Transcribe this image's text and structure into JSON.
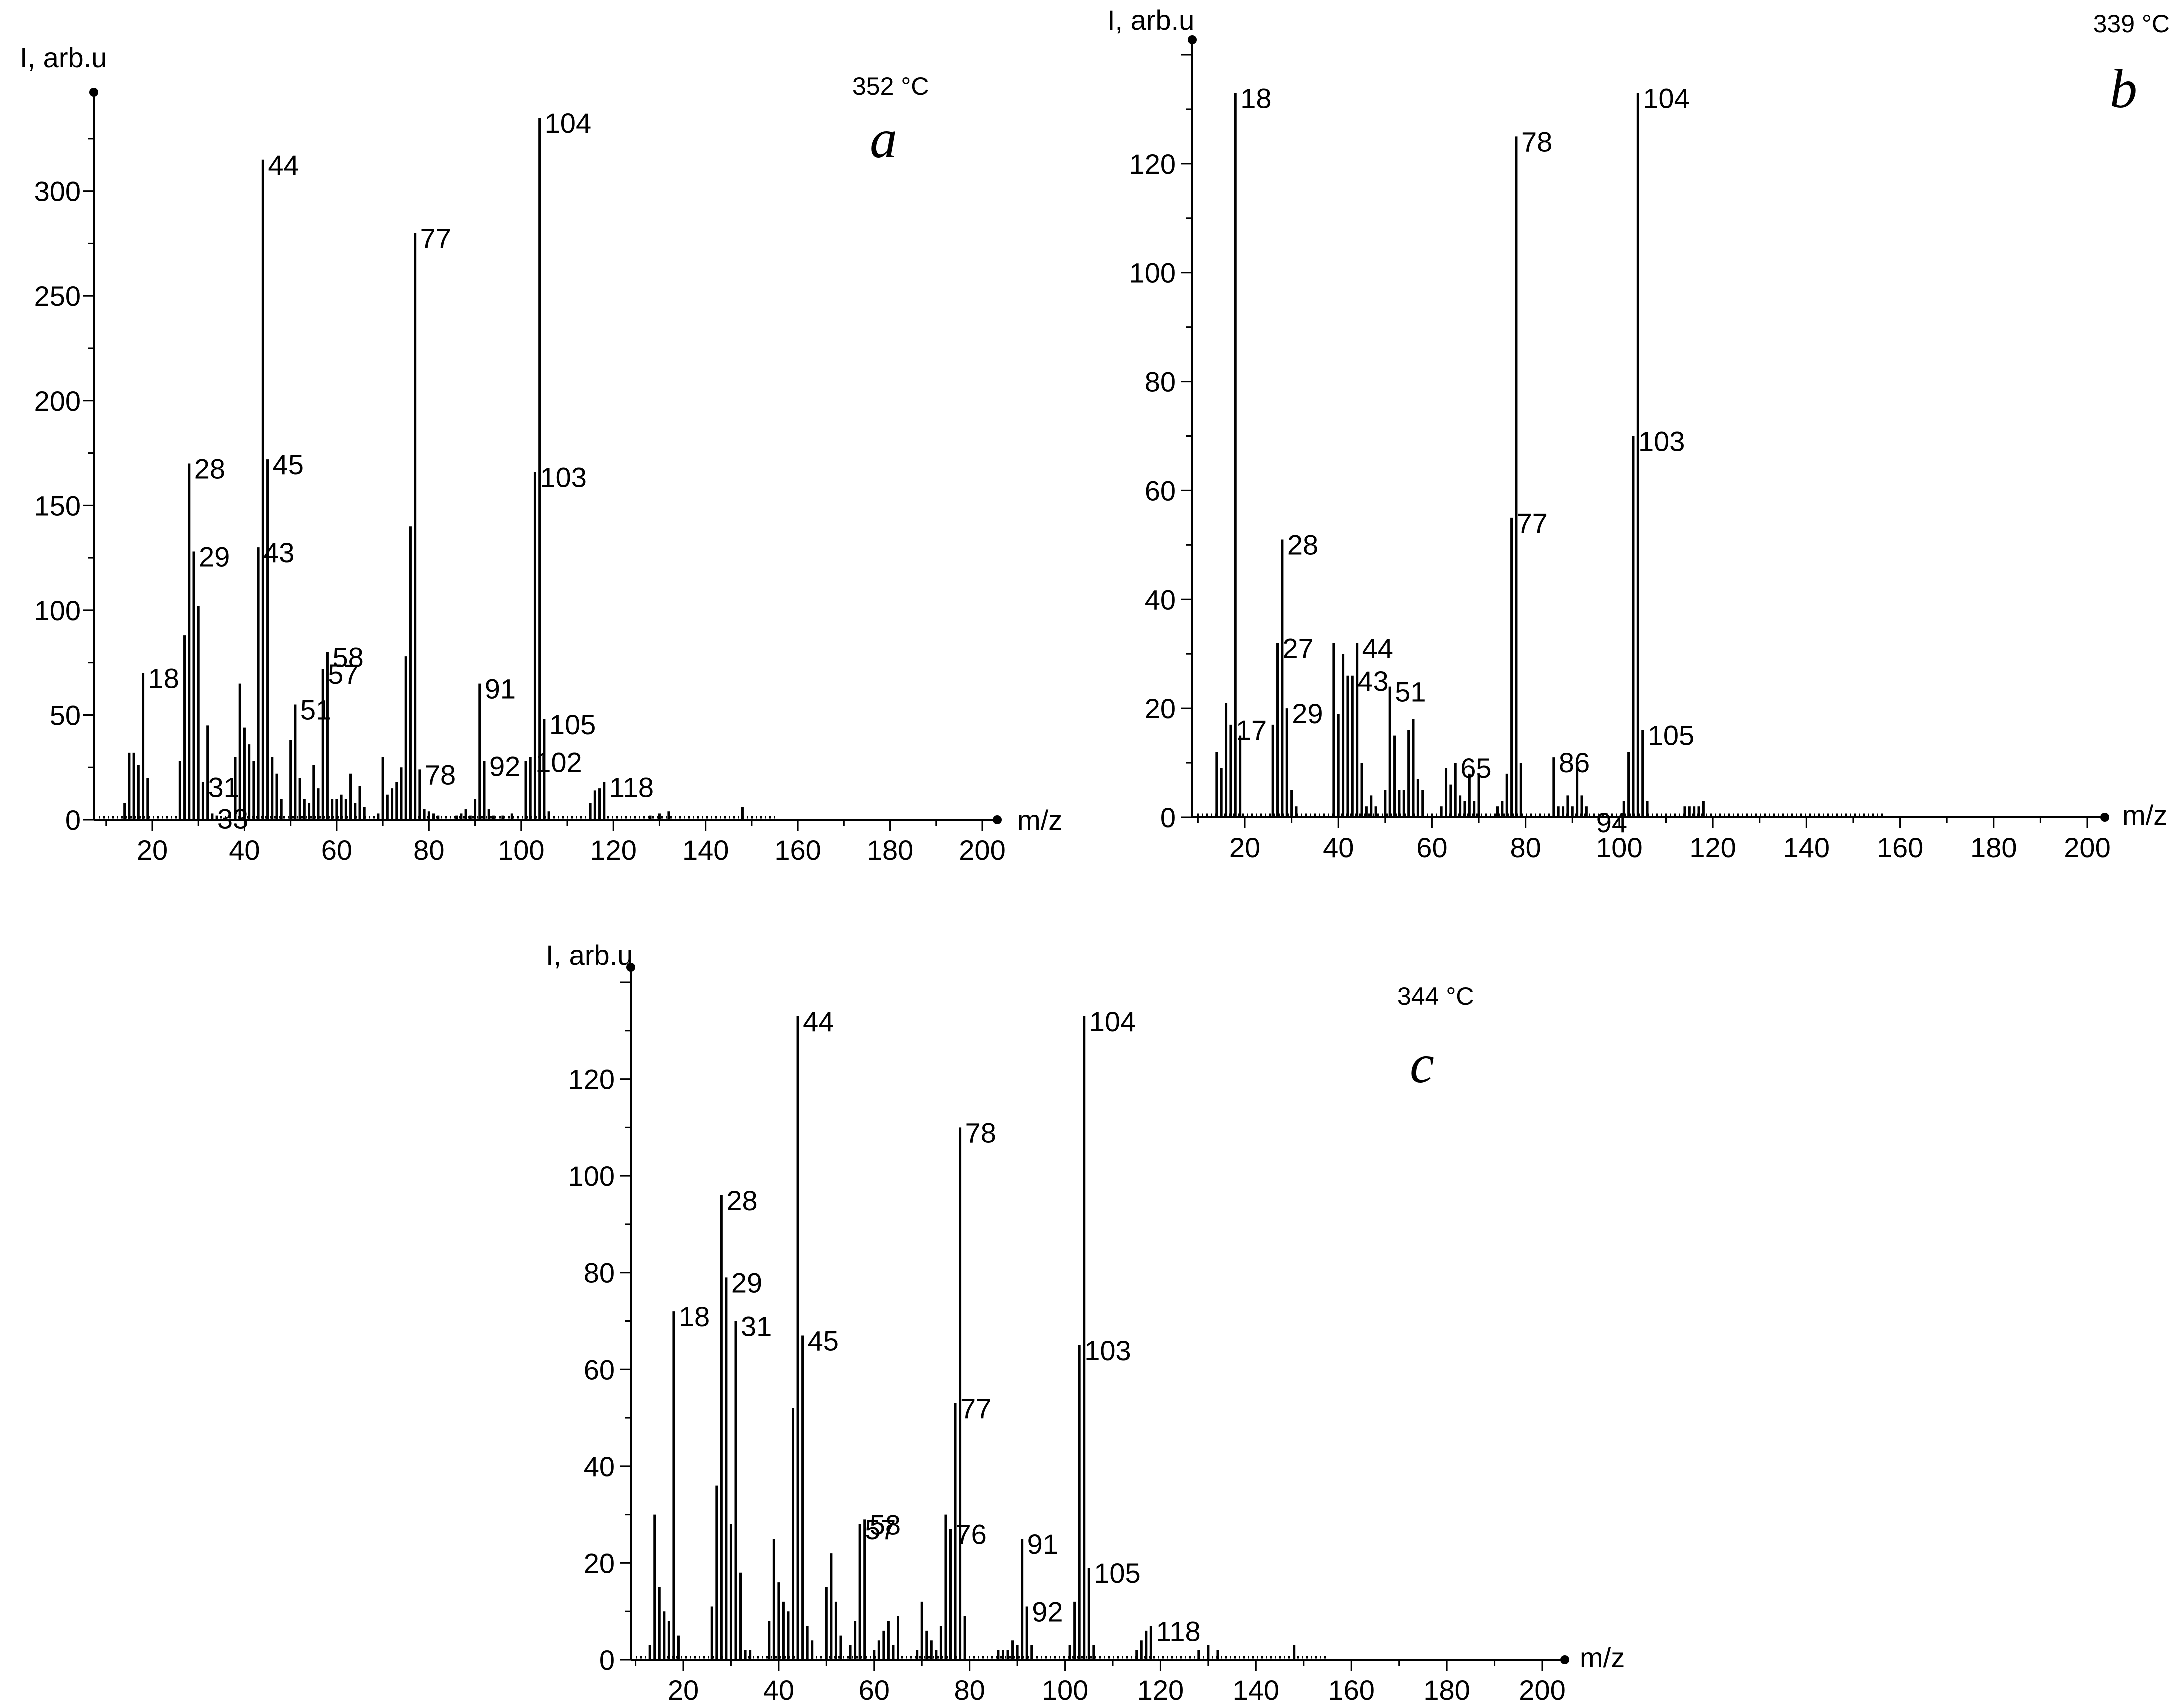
{
  "chart_data": [
    {
      "type": "bar",
      "panel_letter": "a",
      "temperature": "352 °C",
      "ylabel": "I, arb.u",
      "xlabel": "m/z",
      "xlim": [
        9,
        203
      ],
      "ylim": [
        0,
        340
      ],
      "xticks": [
        20,
        40,
        60,
        80,
        100,
        120,
        140,
        160,
        180,
        200
      ],
      "yticks": [
        0,
        50,
        100,
        150,
        200,
        250,
        300
      ],
      "x": [
        14,
        15,
        16,
        17,
        18,
        19,
        26,
        27,
        28,
        29,
        30,
        31,
        32,
        33,
        34,
        38,
        39,
        40,
        41,
        42,
        43,
        44,
        45,
        46,
        47,
        48,
        50,
        51,
        52,
        53,
        54,
        55,
        56,
        57,
        58,
        59,
        60,
        61,
        62,
        63,
        64,
        65,
        66,
        69,
        70,
        71,
        72,
        73,
        74,
        75,
        76,
        77,
        78,
        79,
        80,
        81,
        82,
        86,
        87,
        88,
        89,
        90,
        91,
        92,
        93,
        94,
        96,
        98,
        101,
        102,
        103,
        104,
        105,
        106,
        115,
        116,
        117,
        118,
        128,
        130,
        132,
        148
      ],
      "values": [
        8,
        32,
        32,
        26,
        70,
        20,
        28,
        88,
        170,
        128,
        102,
        18,
        45,
        3,
        2,
        30,
        65,
        44,
        36,
        28,
        130,
        315,
        172,
        30,
        22,
        10,
        38,
        55,
        20,
        10,
        8,
        26,
        15,
        72,
        80,
        10,
        10,
        12,
        10,
        22,
        8,
        16,
        6,
        3,
        30,
        12,
        15,
        18,
        25,
        78,
        140,
        280,
        24,
        5,
        4,
        3,
        2,
        2,
        3,
        5,
        2,
        10,
        65,
        28,
        5,
        2,
        2,
        3,
        28,
        30,
        166,
        335,
        48,
        4,
        8,
        14,
        15,
        18,
        2,
        3,
        4,
        6
      ],
      "labeled_peaks": [
        {
          "x": 18,
          "label": "18"
        },
        {
          "x": 28,
          "label": "28"
        },
        {
          "x": 29,
          "label": "29"
        },
        {
          "x": 31,
          "label": "31"
        },
        {
          "x": 33,
          "label": "33"
        },
        {
          "x": 43,
          "label": "43"
        },
        {
          "x": 44,
          "label": "44"
        },
        {
          "x": 45,
          "label": "45"
        },
        {
          "x": 51,
          "label": "51"
        },
        {
          "x": 57,
          "label": "57"
        },
        {
          "x": 58,
          "label": "58"
        },
        {
          "x": 77,
          "label": "77"
        },
        {
          "x": 78,
          "label": "78"
        },
        {
          "x": 91,
          "label": "91"
        },
        {
          "x": 92,
          "label": "92"
        },
        {
          "x": 102,
          "label": "102"
        },
        {
          "x": 103,
          "label": "103"
        },
        {
          "x": 104,
          "label": "104"
        },
        {
          "x": 105,
          "label": "105"
        },
        {
          "x": 118,
          "label": "118"
        }
      ],
      "baseline_noise_until": 155
    },
    {
      "type": "bar",
      "panel_letter": "b",
      "temperature": "339 °C",
      "ylabel": "I, arb.u",
      "xlabel": "m/z",
      "xlim": [
        9,
        203
      ],
      "ylim": [
        0,
        140
      ],
      "xticks": [
        20,
        40,
        60,
        80,
        100,
        120,
        140,
        160,
        180,
        200
      ],
      "yticks": [
        0,
        20,
        40,
        60,
        80,
        100,
        120
      ],
      "x": [
        14,
        15,
        16,
        17,
        18,
        19,
        26,
        27,
        28,
        29,
        30,
        31,
        39,
        40,
        41,
        42,
        43,
        44,
        45,
        46,
        47,
        48,
        50,
        51,
        52,
        53,
        54,
        55,
        56,
        57,
        58,
        62,
        63,
        64,
        65,
        66,
        67,
        68,
        69,
        70,
        74,
        75,
        76,
        77,
        78,
        79,
        86,
        87,
        88,
        89,
        90,
        91,
        92,
        93,
        101,
        102,
        103,
        104,
        105,
        106,
        114,
        115,
        116,
        117,
        118
      ],
      "values": [
        12,
        9,
        21,
        17,
        133,
        15,
        17,
        32,
        51,
        20,
        5,
        2,
        32,
        19,
        30,
        26,
        26,
        32,
        10,
        2,
        4,
        2,
        5,
        24,
        15,
        5,
        5,
        16,
        18,
        7,
        5,
        2,
        9,
        6,
        10,
        4,
        3,
        8,
        3,
        8,
        2,
        3,
        8,
        55,
        125,
        10,
        11,
        2,
        2,
        4,
        2,
        9,
        4,
        2,
        3,
        12,
        70,
        133,
        16,
        3,
        2,
        2,
        2,
        2,
        3
      ],
      "labeled_peaks": [
        {
          "x": 17,
          "label": "17"
        },
        {
          "x": 18,
          "label": "18"
        },
        {
          "x": 27,
          "label": "27"
        },
        {
          "x": 28,
          "label": "28"
        },
        {
          "x": 29,
          "label": "29"
        },
        {
          "x": 43,
          "label": "43"
        },
        {
          "x": 44,
          "label": "44"
        },
        {
          "x": 51,
          "label": "51"
        },
        {
          "x": 65,
          "label": "65"
        },
        {
          "x": 77,
          "label": "77"
        },
        {
          "x": 78,
          "label": "78"
        },
        {
          "x": 86,
          "label": "86"
        },
        {
          "x": 94,
          "label": "94"
        },
        {
          "x": 103,
          "label": "103"
        },
        {
          "x": 104,
          "label": "104"
        },
        {
          "x": 105,
          "label": "105"
        }
      ],
      "baseline_noise_until": 157
    },
    {
      "type": "bar",
      "panel_letter": "c",
      "temperature": "344 °C",
      "ylabel": "I, arb.u",
      "xlabel": "m/z",
      "xlim": [
        9,
        203
      ],
      "ylim": [
        0,
        140
      ],
      "xticks": [
        20,
        40,
        60,
        80,
        100,
        120,
        140,
        160,
        180,
        200
      ],
      "yticks": [
        0,
        20,
        40,
        60,
        80,
        100,
        120
      ],
      "x": [
        13,
        14,
        15,
        16,
        17,
        18,
        19,
        26,
        27,
        28,
        29,
        30,
        31,
        32,
        33,
        34,
        38,
        39,
        40,
        41,
        42,
        43,
        44,
        45,
        46,
        47,
        50,
        51,
        52,
        53,
        55,
        56,
        57,
        58,
        60,
        61,
        62,
        63,
        64,
        65,
        69,
        70,
        71,
        72,
        73,
        74,
        75,
        76,
        77,
        78,
        79,
        86,
        87,
        88,
        89,
        90,
        91,
        92,
        93,
        101,
        102,
        103,
        104,
        105,
        106,
        115,
        116,
        117,
        118,
        128,
        130,
        132,
        148
      ],
      "values": [
        3,
        30,
        15,
        10,
        8,
        72,
        5,
        11,
        36,
        96,
        79,
        28,
        70,
        18,
        2,
        2,
        8,
        25,
        16,
        12,
        10,
        52,
        133,
        67,
        7,
        4,
        15,
        22,
        12,
        5,
        3,
        8,
        28,
        29,
        2,
        4,
        6,
        8,
        3,
        9,
        2,
        12,
        6,
        4,
        2,
        7,
        30,
        27,
        53,
        110,
        9,
        2,
        2,
        2,
        4,
        3,
        25,
        11,
        3,
        3,
        12,
        65,
        133,
        19,
        3,
        2,
        4,
        6,
        7,
        2,
        3,
        2,
        3
      ],
      "labeled_peaks": [
        {
          "x": 18,
          "label": "18"
        },
        {
          "x": 28,
          "label": "28"
        },
        {
          "x": 29,
          "label": "29"
        },
        {
          "x": 31,
          "label": "31"
        },
        {
          "x": 44,
          "label": "44"
        },
        {
          "x": 45,
          "label": "45"
        },
        {
          "x": 57,
          "label": "57"
        },
        {
          "x": 58,
          "label": "58"
        },
        {
          "x": 76,
          "label": "76"
        },
        {
          "x": 77,
          "label": "77"
        },
        {
          "x": 78,
          "label": "78"
        },
        {
          "x": 91,
          "label": "91"
        },
        {
          "x": 92,
          "label": "92"
        },
        {
          "x": 103,
          "label": "103"
        },
        {
          "x": 104,
          "label": "104"
        },
        {
          "x": 105,
          "label": "105"
        },
        {
          "x": 118,
          "label": "118"
        }
      ],
      "baseline_noise_until": 155
    }
  ]
}
